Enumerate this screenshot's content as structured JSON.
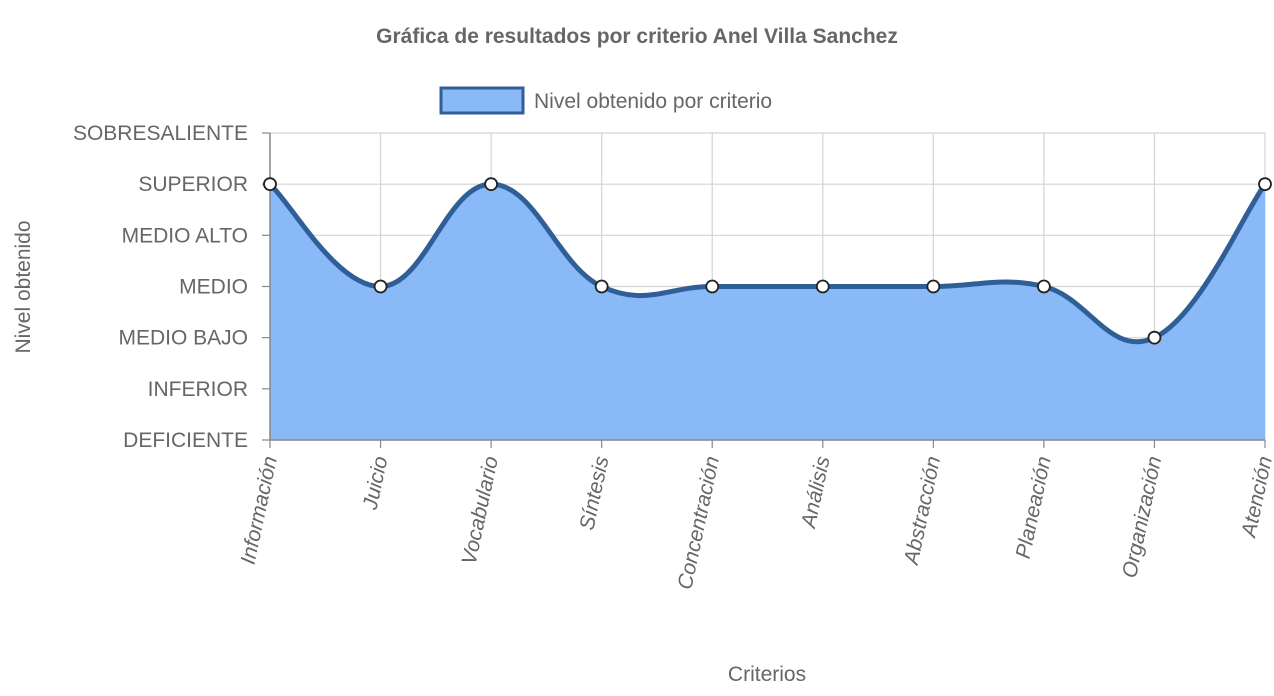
{
  "chart_data": {
    "type": "area",
    "title": "Gráfica de resultados por criterio Anel Villa Sanchez",
    "xlabel": "Criterios",
    "ylabel": "Nivel obtenido",
    "categories": [
      "Información",
      "Juicio",
      "Vocabulario",
      "Síntesis",
      "Concentración",
      "Análisis",
      "Abstracción",
      "Planeación",
      "Organización",
      "Atención"
    ],
    "y_levels": [
      "DEFICIENTE",
      "INFERIOR",
      "MEDIO BAJO",
      "MEDIO",
      "MEDIO ALTO",
      "SUPERIOR",
      "SOBRESALIENTE"
    ],
    "ylim": [
      0,
      6
    ],
    "series": [
      {
        "name": "Nivel obtenido por criterio",
        "values": [
          5,
          3,
          5,
          3,
          3,
          3,
          3,
          3,
          2,
          5
        ]
      }
    ],
    "grid": true,
    "legend_position": "top",
    "colors": {
      "fill": "#89b9f6",
      "line": "#2f5f96",
      "point_fill": "#ffffff",
      "point_stroke": "#222222",
      "grid": "#d4d4d4",
      "axis": "#888888",
      "text": "#666666"
    }
  }
}
